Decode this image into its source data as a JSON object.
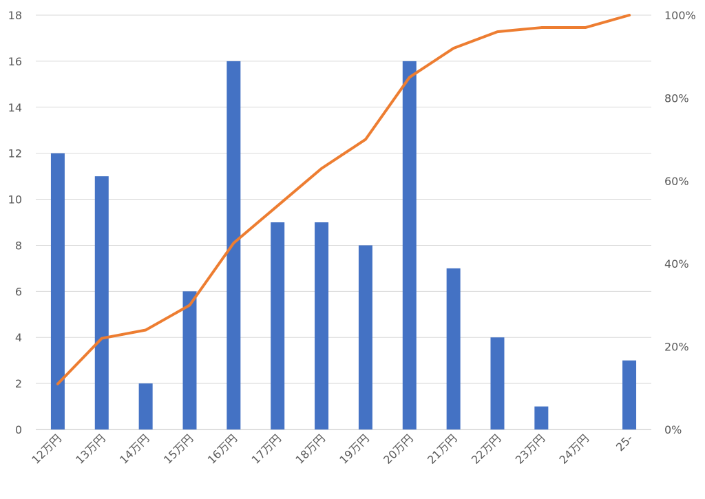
{
  "chart_data": {
    "type": "bar",
    "categories": [
      "12万円",
      "13万円",
      "14万円",
      "15万円",
      "16万円",
      "17万円",
      "18万円",
      "19万円",
      "20万円",
      "21万円",
      "22万円",
      "23万円",
      "24万円",
      "25-"
    ],
    "series": [
      {
        "type": "bar",
        "axis": "left",
        "values": [
          12,
          11,
          2,
          6,
          16,
          9,
          9,
          8,
          16,
          7,
          4,
          1,
          0,
          3
        ],
        "color": "#4472c4"
      },
      {
        "type": "line",
        "axis": "right",
        "values": [
          11,
          22,
          24,
          30,
          45,
          54,
          63,
          70,
          85,
          92,
          96,
          97,
          97,
          100
        ],
        "unit": "%",
        "color": "#ed7d31"
      }
    ],
    "ylim": [
      0,
      18
    ],
    "y_ticks": [
      "0",
      "2",
      "4",
      "6",
      "8",
      "10",
      "12",
      "14",
      "16",
      "18"
    ],
    "y2lim": [
      0,
      100
    ],
    "y2_ticks": [
      "0%",
      "20%",
      "40%",
      "60%",
      "80%",
      "100%"
    ],
    "xlabel": "",
    "ylabel": "",
    "title": "",
    "grid": true,
    "legend": "none"
  }
}
